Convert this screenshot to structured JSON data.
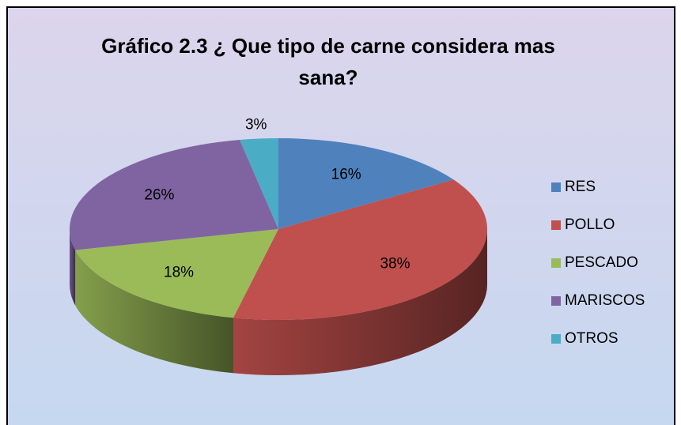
{
  "chart_data": {
    "type": "pie",
    "title": "Gráfico 2.3 ¿ Que tipo de carne considera mas sana?",
    "categories": [
      "RES",
      "POLLO",
      "PESCADO",
      "MARISCOS",
      "OTROS"
    ],
    "values": [
      16,
      38,
      18,
      26,
      3
    ],
    "value_labels": [
      "16%",
      "38%",
      "18%",
      "26%",
      "3%"
    ],
    "colors": [
      "#4f81bd",
      "#c0504d",
      "#9bbb59",
      "#8064a2",
      "#4bacc6"
    ],
    "legend": "right"
  }
}
